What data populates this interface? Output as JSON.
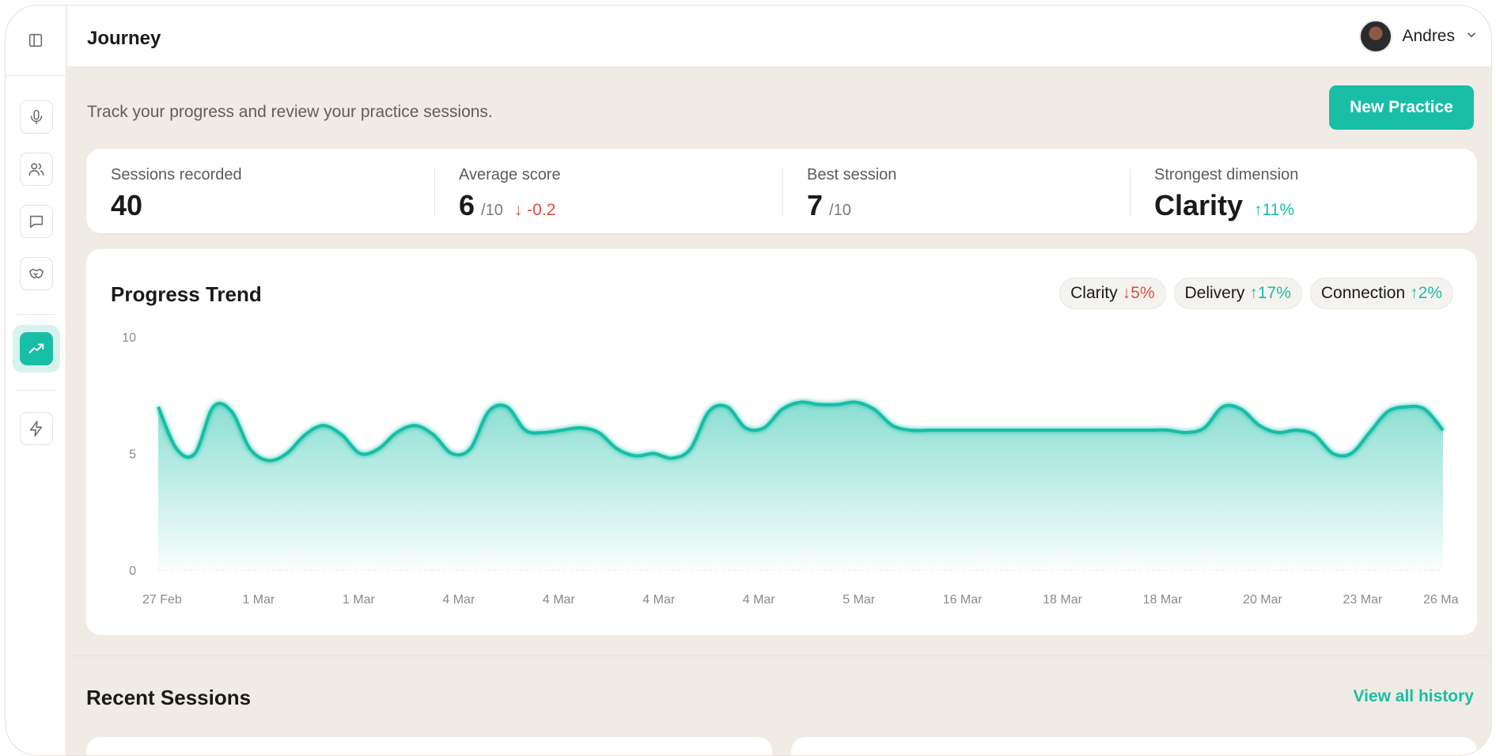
{
  "header": {
    "title": "Journey"
  },
  "user": {
    "name": "Andres"
  },
  "intro": {
    "subtitle": "Track your progress and review your practice sessions.",
    "new_practice_label": "New Practice"
  },
  "stats": {
    "sessions": {
      "label": "Sessions recorded",
      "value": "40"
    },
    "average": {
      "label": "Average score",
      "value": "6",
      "denominator": "/10",
      "change": "-0.2"
    },
    "best": {
      "label": "Best session",
      "value": "7",
      "denominator": "/10"
    },
    "strongest": {
      "label": "Strongest dimension",
      "value": "Clarity",
      "change": "11%"
    }
  },
  "trend": {
    "title": "Progress Trend",
    "pills": [
      {
        "name": "Clarity",
        "change": "5%",
        "direction": "down"
      },
      {
        "name": "Delivery",
        "change": "17%",
        "direction": "up"
      },
      {
        "name": "Connection",
        "change": "2%",
        "direction": "up"
      }
    ]
  },
  "chart_data": {
    "type": "area",
    "title": "Progress Trend",
    "yticks": [
      "10",
      "5",
      "0"
    ],
    "ylim": [
      0,
      10
    ],
    "xtick_labels": [
      "27 Feb",
      "1 Mar",
      "1 Mar",
      "4 Mar",
      "4 Mar",
      "4 Mar",
      "4 Mar",
      "5 Mar",
      "16 Mar",
      "18 Mar",
      "18 Mar",
      "20 Mar",
      "23 Mar",
      "26 Ma"
    ],
    "values": [
      7,
      5.2,
      5,
      7,
      6.8,
      5.2,
      4.7,
      5,
      5.8,
      6.2,
      5.8,
      5,
      5.2,
      5.9,
      6.2,
      5.8,
      5,
      5.2,
      6.8,
      7,
      6,
      5.9,
      6,
      6.1,
      5.9,
      5.2,
      4.9,
      5,
      4.8,
      5.2,
      6.8,
      7,
      6.1,
      6.1,
      6.9,
      7.2,
      7.1,
      7.1,
      7.2,
      6.9,
      6.2,
      6,
      6,
      6,
      6,
      6,
      6,
      6,
      6,
      6,
      6,
      6,
      6,
      6,
      6,
      6,
      5.9,
      6.1,
      7,
      6.9,
      6.2,
      5.9,
      6,
      5.8,
      5,
      5,
      5.9,
      6.8,
      7,
      6.9,
      6
    ],
    "color": "#19bea6",
    "grid": false
  },
  "recent": {
    "title": "Recent Sessions",
    "view_all": "View all history"
  }
}
